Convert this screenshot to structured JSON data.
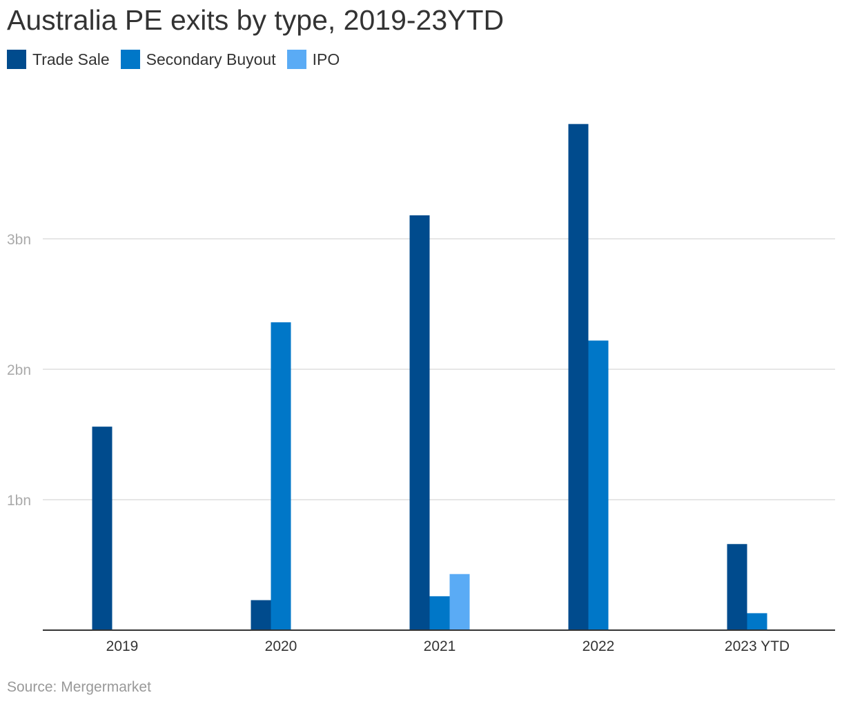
{
  "title": "Australia PE exits by type, 2019-23YTD",
  "source": "Source: Mergermarket",
  "colors": {
    "trade_sale": "#004b8d",
    "secondary_buyout": "#0077c8",
    "ipo": "#5aabf5",
    "grid": "#dddddd",
    "axis": "#333333",
    "tick_label": "#aaaaaa",
    "category_label": "#333333"
  },
  "legend": [
    {
      "label": "Trade Sale",
      "color": "#004b8d"
    },
    {
      "label": "Secondary Buyout",
      "color": "#0077c8"
    },
    {
      "label": "IPO",
      "color": "#5aabf5"
    }
  ],
  "chart_data": {
    "type": "bar",
    "categories": [
      "2019",
      "2020",
      "2021",
      "2022",
      "2023 YTD"
    ],
    "series": [
      {
        "name": "Trade Sale",
        "values": [
          1.56,
          0.23,
          3.18,
          3.88,
          0.66
        ]
      },
      {
        "name": "Secondary Buyout",
        "values": [
          0,
          2.36,
          0.26,
          2.22,
          0.13
        ]
      },
      {
        "name": "IPO",
        "values": [
          0,
          0,
          0.43,
          0,
          0
        ]
      }
    ],
    "yticks": [
      1,
      2,
      3
    ],
    "ytick_labels": [
      "1bn",
      "2bn",
      "3bn"
    ],
    "ylim": [
      0,
      4.25
    ],
    "grid": true,
    "legend_position": "top-left",
    "title": "Australia PE exits by type, 2019-23YTD",
    "xlabel": "",
    "ylabel": ""
  }
}
